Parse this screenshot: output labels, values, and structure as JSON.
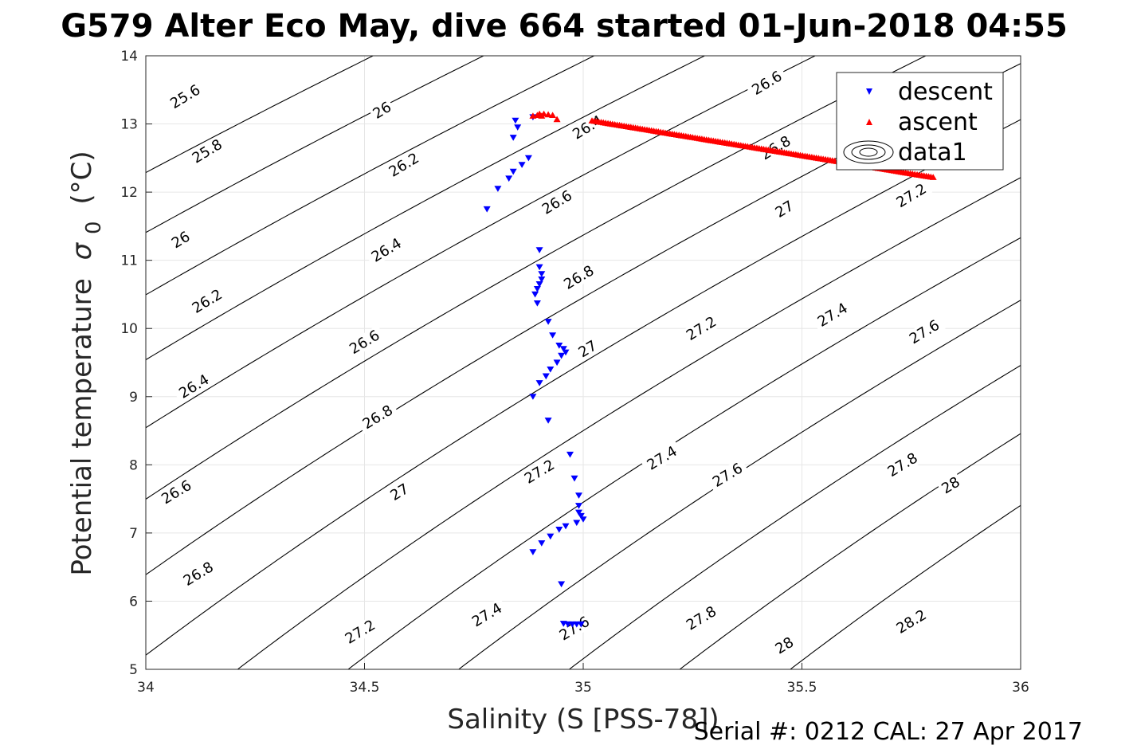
{
  "chart_data": {
    "type": "scatter",
    "title": "G579 Alter Eco May, dive 664 started 01-Jun-2018 04:55",
    "xlabel": "Salinity (S [PSS-78])",
    "ylabel": "Potential temperature",
    "ylabel_sigma": "σ",
    "ylabel_sub": "0",
    "ylabel_unit": "(°C)",
    "xlim": [
      34,
      36
    ],
    "ylim": [
      5,
      14
    ],
    "xticks": [
      "34",
      "34.5",
      "35",
      "35.5",
      "36"
    ],
    "yticks": [
      "5",
      "6",
      "7",
      "8",
      "9",
      "10",
      "11",
      "12",
      "13",
      "14"
    ],
    "grid": true,
    "legend": {
      "placement": "top-right",
      "entries": [
        "descent",
        "ascent",
        "data1"
      ]
    },
    "contour_levels": [
      25.6,
      25.8,
      26,
      26.2,
      26.4,
      26.6,
      26.8,
      27,
      27.2,
      27.4,
      27.6,
      27.8,
      28,
      28.2
    ],
    "contour_labels": [
      {
        "text": "25.6",
        "s": 34.09,
        "t": 13.4
      },
      {
        "text": "25.8",
        "s": 34.14,
        "t": 12.6
      },
      {
        "text": "26",
        "s": 34.08,
        "t": 11.3
      },
      {
        "text": "26.2",
        "s": 34.14,
        "t": 10.4
      },
      {
        "text": "26.4",
        "s": 34.11,
        "t": 9.15
      },
      {
        "text": "26.6",
        "s": 34.07,
        "t": 7.6
      },
      {
        "text": "26.8",
        "s": 34.12,
        "t": 6.4
      },
      {
        "text": "26",
        "s": 34.54,
        "t": 13.2
      },
      {
        "text": "26.2",
        "s": 34.59,
        "t": 12.4
      },
      {
        "text": "26.4",
        "s": 34.55,
        "t": 11.15
      },
      {
        "text": "26.6",
        "s": 34.5,
        "t": 9.8
      },
      {
        "text": "26.8",
        "s": 34.53,
        "t": 8.7
      },
      {
        "text": "27",
        "s": 34.58,
        "t": 7.6
      },
      {
        "text": "27.2",
        "s": 34.49,
        "t": 5.55
      },
      {
        "text": "26.4",
        "s": 35.01,
        "t": 12.95
      },
      {
        "text": "26.6",
        "s": 34.94,
        "t": 11.85
      },
      {
        "text": "26.8",
        "s": 34.99,
        "t": 10.75
      },
      {
        "text": "27",
        "s": 35.01,
        "t": 9.7
      },
      {
        "text": "27.2",
        "s": 34.9,
        "t": 7.9
      },
      {
        "text": "27.4",
        "s": 34.78,
        "t": 5.8
      },
      {
        "text": "27.6",
        "s": 34.98,
        "t": 5.6
      },
      {
        "text": "26.6",
        "s": 35.42,
        "t": 13.6
      },
      {
        "text": "26.8",
        "s": 35.44,
        "t": 12.65
      },
      {
        "text": "27",
        "s": 35.46,
        "t": 11.75
      },
      {
        "text": "27.2",
        "s": 35.27,
        "t": 10.0
      },
      {
        "text": "27.4",
        "s": 35.18,
        "t": 8.1
      },
      {
        "text": "27.6",
        "s": 35.33,
        "t": 7.85
      },
      {
        "text": "27.8",
        "s": 35.27,
        "t": 5.75
      },
      {
        "text": "28",
        "s": 35.46,
        "t": 5.35
      },
      {
        "text": "27.2",
        "s": 35.75,
        "t": 11.95
      },
      {
        "text": "27.4",
        "s": 35.57,
        "t": 10.2
      },
      {
        "text": "27.6",
        "s": 35.78,
        "t": 9.95
      },
      {
        "text": "27.8",
        "s": 35.73,
        "t": 8.0
      },
      {
        "text": "28",
        "s": 35.84,
        "t": 7.7
      },
      {
        "text": "28.2",
        "s": 35.75,
        "t": 5.7
      }
    ],
    "series": [
      {
        "name": "descent",
        "color": "#0000ff",
        "marker": "triangle-down",
        "points": [
          [
            34.78,
            11.75
          ],
          [
            34.805,
            12.05
          ],
          [
            34.83,
            12.2
          ],
          [
            34.84,
            12.3
          ],
          [
            34.86,
            12.4
          ],
          [
            34.875,
            12.5
          ],
          [
            34.84,
            12.8
          ],
          [
            34.85,
            12.95
          ],
          [
            34.885,
            13.1
          ],
          [
            34.845,
            13.05
          ],
          [
            34.9,
            11.15
          ],
          [
            34.9,
            10.9
          ],
          [
            34.905,
            10.8
          ],
          [
            34.905,
            10.72
          ],
          [
            34.9,
            10.65
          ],
          [
            34.895,
            10.58
          ],
          [
            34.89,
            10.5
          ],
          [
            34.895,
            10.37
          ],
          [
            34.92,
            10.1
          ],
          [
            34.93,
            9.9
          ],
          [
            34.945,
            9.75
          ],
          [
            34.955,
            9.7
          ],
          [
            34.96,
            9.65
          ],
          [
            34.95,
            9.6
          ],
          [
            34.94,
            9.5
          ],
          [
            34.925,
            9.4
          ],
          [
            34.915,
            9.3
          ],
          [
            34.9,
            9.2
          ],
          [
            34.885,
            9.0
          ],
          [
            34.92,
            8.65
          ],
          [
            34.97,
            8.15
          ],
          [
            34.98,
            7.8
          ],
          [
            34.99,
            7.55
          ],
          [
            34.99,
            7.4
          ],
          [
            34.99,
            7.3
          ],
          [
            34.995,
            7.25
          ],
          [
            35.0,
            7.2
          ],
          [
            34.985,
            7.15
          ],
          [
            34.96,
            7.1
          ],
          [
            34.945,
            7.05
          ],
          [
            34.925,
            6.95
          ],
          [
            34.905,
            6.85
          ],
          [
            34.885,
            6.72
          ],
          [
            34.95,
            6.25
          ],
          [
            34.955,
            5.67
          ],
          [
            34.965,
            5.66
          ],
          [
            34.975,
            5.66
          ],
          [
            34.985,
            5.66
          ],
          [
            34.995,
            5.66
          ]
        ]
      },
      {
        "name": "ascent",
        "color": "#ff0000",
        "marker": "triangle-up",
        "points": [
          [
            34.885,
            13.12
          ],
          [
            34.9,
            13.15
          ],
          [
            34.91,
            13.15
          ],
          [
            34.92,
            13.14
          ],
          [
            34.93,
            13.13
          ],
          [
            34.905,
            13.12
          ],
          [
            34.895,
            13.13
          ],
          [
            34.94,
            13.07
          ]
        ],
        "dense_track": {
          "from": [
            35.02,
            13.05
          ],
          "to": [
            35.8,
            12.22
          ],
          "count": 150
        }
      }
    ]
  },
  "footer": {
    "serial": "Serial #: 0212  CAL: 27 Apr 2017"
  }
}
